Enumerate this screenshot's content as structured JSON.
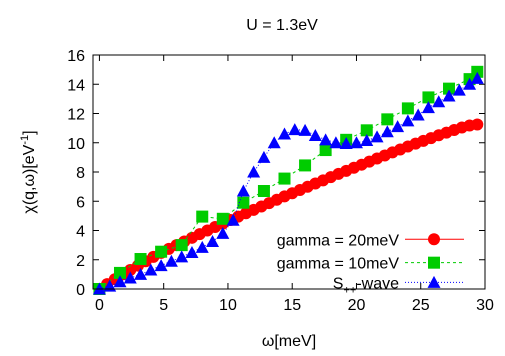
{
  "chart_data": {
    "type": "scatter",
    "title": "U = 1.3eV",
    "xlabel": "ω[meV]",
    "ylabel_base": "χ(q,ω)[eV",
    "ylabel_sup": "-1",
    "ylabel_end": "]",
    "xlim": [
      -0.5,
      30
    ],
    "ylim": [
      0,
      16
    ],
    "xticks": [
      0,
      5,
      10,
      15,
      20,
      25,
      30
    ],
    "yticks": [
      0,
      2,
      4,
      6,
      8,
      10,
      12,
      14,
      16
    ],
    "grid": false,
    "legend_position": "bottom-right",
    "series": [
      {
        "name": "gamma = 20meV",
        "name_parts": [
          "gamma = 20meV"
        ],
        "marker": "circle",
        "line": "solid",
        "color": "#ff0000",
        "x": [
          0,
          0.6,
          1.2,
          1.8,
          2.4,
          3.0,
          3.6,
          4.2,
          4.8,
          5.4,
          6.0,
          6.6,
          7.2,
          7.8,
          8.4,
          9.0,
          9.6,
          10.2,
          10.8,
          11.4,
          12.0,
          12.6,
          13.2,
          13.8,
          14.4,
          15.0,
          15.6,
          16.2,
          16.8,
          17.4,
          18.0,
          18.6,
          19.2,
          19.8,
          20.4,
          21.0,
          21.6,
          22.2,
          22.8,
          23.4,
          24.0,
          24.6,
          25.2,
          25.8,
          26.4,
          27.0,
          27.6,
          28.2,
          28.8,
          29.4
        ],
        "y": [
          0.0,
          0.33,
          0.67,
          1.0,
          1.3,
          1.6,
          1.9,
          2.2,
          2.47,
          2.74,
          3.0,
          3.25,
          3.5,
          3.75,
          4.0,
          4.24,
          4.48,
          4.72,
          4.95,
          5.18,
          5.41,
          5.64,
          5.87,
          6.1,
          6.33,
          6.55,
          6.77,
          6.99,
          7.21,
          7.43,
          7.65,
          7.87,
          8.08,
          8.29,
          8.5,
          8.71,
          8.92,
          9.13,
          9.34,
          9.54,
          9.74,
          9.94,
          10.13,
          10.32,
          10.51,
          10.69,
          10.87,
          11.04,
          11.18,
          11.25
        ]
      },
      {
        "name": "gamma = 10meV",
        "name_parts": [
          "gamma = 10meV"
        ],
        "marker": "square",
        "line": "dashed",
        "color": "#00cc00",
        "x": [
          0,
          1.6,
          3.2,
          4.8,
          6.4,
          8.0,
          9.6,
          11.2,
          12.8,
          14.4,
          16.0,
          17.6,
          19.2,
          20.8,
          22.4,
          24.0,
          25.6,
          27.2,
          28.8,
          29.4
        ],
        "y": [
          0.0,
          1.1,
          2.05,
          2.55,
          3.0,
          4.95,
          4.8,
          5.9,
          6.7,
          7.55,
          8.45,
          9.5,
          10.2,
          10.85,
          11.6,
          12.35,
          13.1,
          13.7,
          14.35,
          14.85
        ]
      },
      {
        "name": "S++-wave",
        "name_parts": [
          "S",
          "++",
          "-wave"
        ],
        "marker": "triangle",
        "line": "dotted",
        "color": "#0000ff",
        "x": [
          0,
          0.8,
          1.6,
          2.4,
          3.2,
          4.0,
          4.8,
          5.6,
          6.4,
          7.2,
          8.0,
          8.8,
          9.6,
          10.4,
          11.2,
          12.0,
          12.8,
          13.6,
          14.4,
          15.2,
          16.0,
          16.8,
          17.6,
          18.4,
          19.2,
          20.0,
          20.8,
          21.6,
          22.4,
          23.2,
          24.0,
          24.8,
          25.6,
          26.4,
          27.2,
          28.0,
          28.8,
          29.4
        ],
        "y": [
          0.0,
          0.2,
          0.5,
          0.75,
          1.0,
          1.3,
          1.6,
          1.9,
          2.2,
          2.5,
          2.85,
          3.25,
          3.8,
          4.7,
          6.7,
          8.0,
          9.0,
          10.0,
          10.6,
          10.9,
          10.85,
          10.5,
          10.2,
          10.0,
          9.95,
          10.0,
          10.15,
          10.4,
          10.75,
          11.1,
          11.5,
          11.9,
          12.4,
          12.8,
          13.2,
          13.6,
          14.0,
          14.4
        ]
      }
    ]
  }
}
